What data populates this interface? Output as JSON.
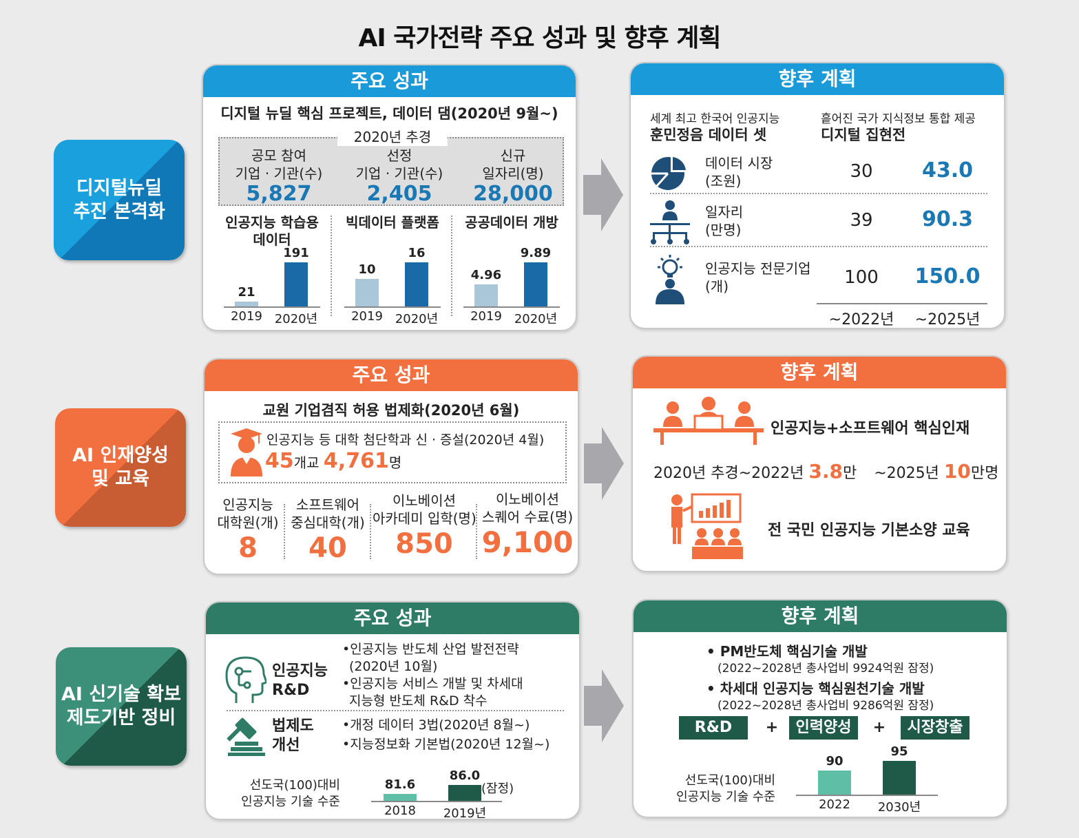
{
  "title": "AI 국가전략 주요 성과 및 향후 계획",
  "colors": {
    "blue": "#1a9ad8",
    "orange": "#f26f3f",
    "green": "#2f7c66",
    "dark_green": "#1f5a48",
    "light_bar": "#a9c7d8",
    "teal_bar": "#5fbfa6"
  },
  "rows": [
    {
      "category": [
        "디지털뉴딜",
        "추진 본격화"
      ],
      "achievements": {
        "header": "주요 성과",
        "subtitle": "디지털 뉴딜 핵심 프로젝트, 데이터 댐(2020년 9월~)",
        "box_label": "2020년 추경",
        "stats": [
          {
            "label1": "공모 참여",
            "label2": "기업 · 기관(수)",
            "value": "5,827"
          },
          {
            "label1": "선정",
            "label2": "기업 · 기관(수)",
            "value": "2,405"
          },
          {
            "label1": "신규",
            "label2": "일자리(명)",
            "value": "28,000"
          }
        ],
        "charts": [
          {
            "title1": "인공지능 학습용",
            "title2": "데이터",
            "categories": [
              "2019",
              "2020년"
            ],
            "values": [
              21,
              191
            ],
            "labels": [
              "21",
              "191"
            ]
          },
          {
            "title1": "빅데이터 플랫폼",
            "title2": "",
            "categories": [
              "2019",
              "2020년"
            ],
            "values": [
              10,
              16
            ],
            "labels": [
              "10",
              "16"
            ]
          },
          {
            "title1": "공공데이터 개방",
            "title2": "",
            "categories": [
              "2019",
              "2020년"
            ],
            "values": [
              4.96,
              9.89
            ],
            "labels": [
              "4.96",
              "9.89"
            ]
          }
        ]
      },
      "plan": {
        "header": "향후 계획",
        "item1_sub": "세계 최고 한국어 인공지능",
        "item1_main": "훈민정음 데이터 셋",
        "item2_sub": "흩어진 국가 지식정보 통합 제공",
        "item2_main": "디지털 집현전",
        "rows": [
          {
            "icon": "pie-chart-icon",
            "label1": "데이터 시장",
            "label2": "(조원)",
            "v2022": "30",
            "v2025": "43.0"
          },
          {
            "icon": "org-chart-icon",
            "label1": "일자리",
            "label2": "(만명)",
            "v2022": "39",
            "v2025": "90.3"
          },
          {
            "icon": "lightbulb-person-icon",
            "label1": "인공지능 전문기업",
            "label2": "(개)",
            "v2022": "100",
            "v2025": "150.0"
          }
        ],
        "col1": "~2022년",
        "col2": "~2025년"
      }
    },
    {
      "category": [
        "AI 인재양성",
        "및 교육"
      ],
      "achievements": {
        "header": "주요 성과",
        "subtitle": "교원 기업겸직 허용 법제화(2020년 6월)",
        "box_text": "인공지능 등 대학 첨단학과 신 · 증설(2020년 4월)",
        "box_num1": "45",
        "box_unit1": "개교",
        "box_num2": "4,761",
        "box_unit2": "명",
        "stats": [
          {
            "label1": "인공지능",
            "label2": "대학원(개)",
            "value": "8"
          },
          {
            "label1": "소프트웨어",
            "label2": "중심대학(개)",
            "value": "40"
          },
          {
            "label1": "이노베이션",
            "label2": "아카데미 입학(명)",
            "value": "850"
          },
          {
            "label1": "이노베이션",
            "label2": "스퀘어 수료(명)",
            "value": "9,100"
          }
        ]
      },
      "plan": {
        "header": "향후 계획",
        "line1": "인공지능+소프트웨어 핵심인재",
        "line2_a": "2020년 추경~2022년",
        "line2_num1": "3.8",
        "line2_unit1": "만",
        "line2_b": "~2025년",
        "line2_num2": "10",
        "line2_unit2": "만명",
        "line3": "전 국민 인공지능 기본소양 교육"
      }
    },
    {
      "category": [
        "AI 신기술 확보",
        "제도기반 정비"
      ],
      "achievements": {
        "header": "주요 성과",
        "rd_label1": "인공지능",
        "rd_label2": "R&D",
        "rd_items": [
          "•인공지능 반도체 산업 발전전략",
          "(2020년 10월)",
          "•인공지능 서비스 개발 및 차세대",
          "지능형 반도체 R&D 착수"
        ],
        "law_label1": "법제도",
        "law_label2": "개선",
        "law_items": [
          "•개정 데이터 3법(2020년 8월~)",
          "•지능정보화 기본법(2020년 12월~)"
        ],
        "chart_label1": "선도국(100)대비",
        "chart_label2": "인공지능 기술 수준",
        "note": "(잠정)"
      },
      "plan": {
        "header": "향후 계획",
        "b1": "• PM반도체 핵심기술 개발",
        "b1_sub": "(2022~2028년 총사업비 9924억원 잠정)",
        "b2": "• 차세대 인공지능 핵심원천기술 개발",
        "b2_sub": "(2022~2028년 총사업비 9286억원 잠정)",
        "tags": [
          "R&D",
          "인력양성",
          "시장창출"
        ],
        "plus": "+",
        "chart_label1": "선도국(100)대비",
        "chart_label2": "인공지능 기술 수준"
      }
    }
  ],
  "chart_data": [
    {
      "type": "bar",
      "title": "인공지능 학습용 데이터",
      "categories": [
        "2019",
        "2020년"
      ],
      "values": [
        21,
        191
      ]
    },
    {
      "type": "bar",
      "title": "빅데이터 플랫폼",
      "categories": [
        "2019",
        "2020년"
      ],
      "values": [
        10,
        16
      ]
    },
    {
      "type": "bar",
      "title": "공공데이터 개방",
      "categories": [
        "2019",
        "2020년"
      ],
      "values": [
        4.96,
        9.89
      ]
    },
    {
      "type": "bar",
      "title": "",
      "ylabel": "선도국(100)대비 인공지능 기술 수준",
      "categories": [
        "2018",
        "2019년"
      ],
      "values": [
        81.6,
        86.0
      ],
      "labels": [
        "81.6",
        "86.0"
      ]
    },
    {
      "type": "bar",
      "title": "",
      "ylabel": "선도국(100)대비 인공지능 기술 수준",
      "categories": [
        "2022",
        "2030년"
      ],
      "values": [
        90,
        95
      ],
      "labels": [
        "90",
        "95"
      ]
    }
  ]
}
